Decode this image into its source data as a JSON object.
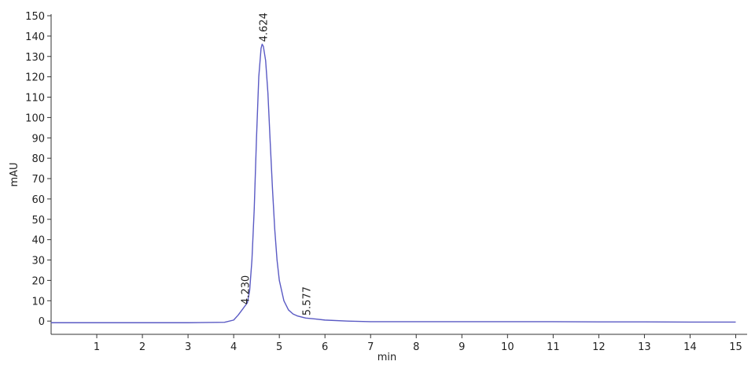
{
  "chart_data": {
    "type": "line",
    "x_label": "min",
    "y_label": "mAU",
    "xlim": [
      0,
      15.25
    ],
    "ylim": [
      -6.5,
      150
    ],
    "xticks": [
      1,
      2,
      3,
      4,
      5,
      6,
      7,
      8,
      9,
      10,
      11,
      12,
      13,
      14,
      15
    ],
    "yticks": [
      0,
      10,
      20,
      30,
      40,
      50,
      60,
      70,
      80,
      90,
      100,
      110,
      120,
      130,
      140,
      150
    ],
    "grid": false,
    "series": [
      {
        "color": "#5a5ac4",
        "x": [
          0,
          1,
          2,
          3,
          3.8,
          4.0,
          4.1,
          4.2,
          4.3,
          4.35,
          4.4,
          4.45,
          4.5,
          4.55,
          4.6,
          4.624,
          4.65,
          4.7,
          4.75,
          4.8,
          4.85,
          4.9,
          4.95,
          5.0,
          5.1,
          5.2,
          5.3,
          5.4,
          5.577,
          5.8,
          6,
          6.5,
          7,
          8,
          9,
          10,
          11,
          12,
          13,
          14,
          15
        ],
        "values": [
          -0.8,
          -0.8,
          -0.8,
          -0.8,
          -0.6,
          0.5,
          3,
          6,
          9,
          15,
          30,
          55,
          90,
          120,
          134,
          136,
          135,
          128,
          112,
          88,
          65,
          45,
          30,
          20,
          10,
          5.5,
          3.5,
          2.5,
          1.5,
          1,
          0.5,
          0,
          -0.3,
          -0.3,
          -0.3,
          -0.3,
          -0.3,
          -0.4,
          -0.4,
          -0.5,
          -0.5
        ]
      }
    ],
    "annotations": [
      {
        "x": 4.23,
        "y": 7,
        "label": "4.230"
      },
      {
        "x": 4.624,
        "y": 136,
        "label": "4.624"
      },
      {
        "x": 5.577,
        "y": 1.5,
        "label": "5.577"
      }
    ]
  }
}
